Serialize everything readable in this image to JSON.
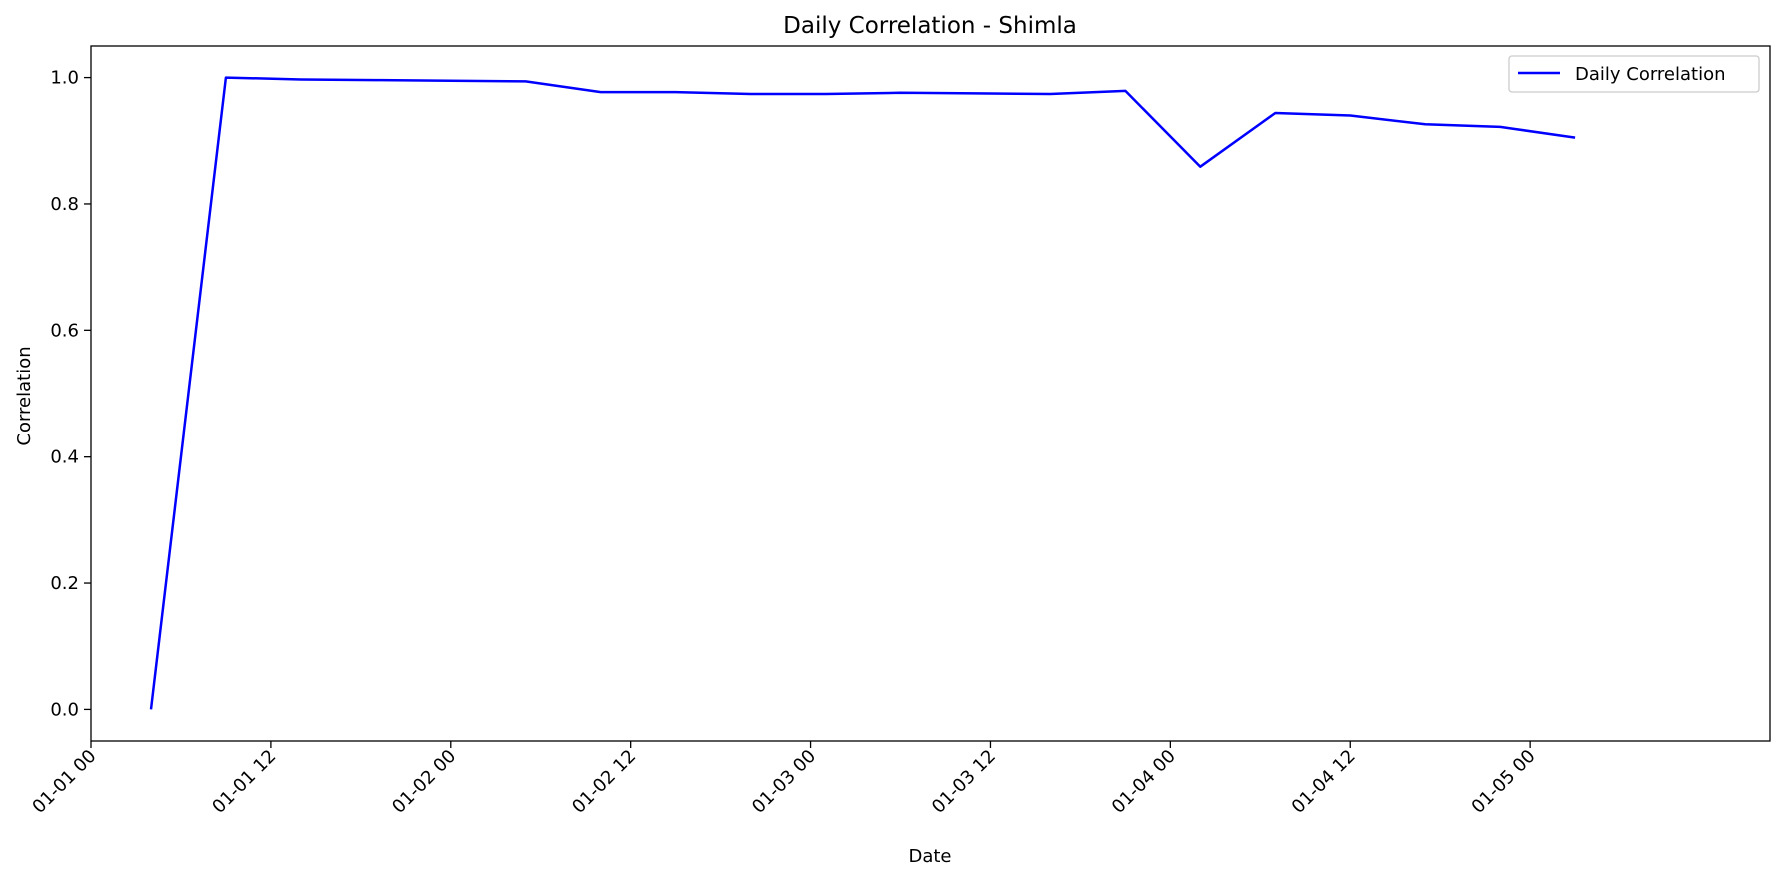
{
  "chart_data": {
    "type": "line",
    "title": "Daily Correlation - Shimla",
    "xlabel": "Date",
    "ylabel": "Correlation",
    "xlim": [
      "2023-01-01T00:00",
      "2023-01-05T16:00"
    ],
    "ylim": [
      -0.05,
      1.05
    ],
    "x_ticks": [
      {
        "x": "2023-01-01T00:00",
        "label": "01-01 00"
      },
      {
        "x": "2023-01-01T12:00",
        "label": "01-01 12"
      },
      {
        "x": "2023-01-02T00:00",
        "label": "01-02 00"
      },
      {
        "x": "2023-01-02T12:00",
        "label": "01-02 12"
      },
      {
        "x": "2023-01-03T00:00",
        "label": "01-03 00"
      },
      {
        "x": "2023-01-03T12:00",
        "label": "01-03 12"
      },
      {
        "x": "2023-01-04T00:00",
        "label": "01-04 00"
      },
      {
        "x": "2023-01-04T12:00",
        "label": "01-04 12"
      },
      {
        "x": "2023-01-05T00:00",
        "label": "01-05 00"
      }
    ],
    "y_ticks": [
      {
        "y": 0.0,
        "label": "0.0"
      },
      {
        "y": 0.2,
        "label": "0.2"
      },
      {
        "y": 0.4,
        "label": "0.4"
      },
      {
        "y": 0.6,
        "label": "0.6"
      },
      {
        "y": 0.8,
        "label": "0.8"
      },
      {
        "y": 1.0,
        "label": "1.0"
      }
    ],
    "grid": false,
    "legend_position": "top-right",
    "series": [
      {
        "name": "Daily Correlation",
        "color": "#0000ff",
        "points": [
          {
            "x": "2023-01-01T04:00",
            "y": 0.0
          },
          {
            "x": "2023-01-01T09:00",
            "y": 1.0
          },
          {
            "x": "2023-01-01T14:00",
            "y": 0.997
          },
          {
            "x": "2023-01-01T19:00",
            "y": 0.996
          },
          {
            "x": "2023-01-02T00:00",
            "y": 0.995
          },
          {
            "x": "2023-01-02T05:00",
            "y": 0.994
          },
          {
            "x": "2023-01-02T10:00",
            "y": 0.977
          },
          {
            "x": "2023-01-02T15:00",
            "y": 0.977
          },
          {
            "x": "2023-01-02T20:00",
            "y": 0.974
          },
          {
            "x": "2023-01-03T01:00",
            "y": 0.974
          },
          {
            "x": "2023-01-03T06:00",
            "y": 0.976
          },
          {
            "x": "2023-01-03T11:00",
            "y": 0.975
          },
          {
            "x": "2023-01-03T16:00",
            "y": 0.974
          },
          {
            "x": "2023-01-03T21:00",
            "y": 0.979
          },
          {
            "x": "2023-01-04T02:00",
            "y": 0.859
          },
          {
            "x": "2023-01-04T07:00",
            "y": 0.944
          },
          {
            "x": "2023-01-04T12:00",
            "y": 0.94
          },
          {
            "x": "2023-01-04T17:00",
            "y": 0.926
          },
          {
            "x": "2023-01-04T22:00",
            "y": 0.922
          },
          {
            "x": "2023-01-05T03:00",
            "y": 0.905
          }
        ]
      }
    ]
  }
}
